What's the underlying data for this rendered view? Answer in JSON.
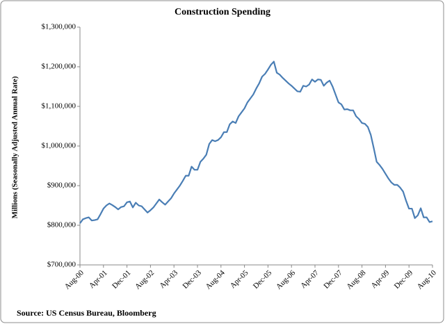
{
  "chart_data": {
    "type": "line",
    "title": "Construction Spending",
    "y_label": "Millions (Seasonally Adjusted Annual Rate)",
    "source": "Source:  US Census Bureau, Bloomberg",
    "categories": [
      "Aug-00",
      null,
      null,
      null,
      null,
      null,
      null,
      null,
      "Apr-01",
      null,
      null,
      null,
      null,
      null,
      null,
      null,
      "Dec-01",
      null,
      null,
      null,
      null,
      null,
      null,
      null,
      "Aug-02",
      null,
      null,
      null,
      null,
      null,
      null,
      null,
      "Apr-03",
      null,
      null,
      null,
      null,
      null,
      null,
      null,
      "Dec-03",
      null,
      null,
      null,
      null,
      null,
      null,
      null,
      "Aug-04",
      null,
      null,
      null,
      null,
      null,
      null,
      null,
      "Apr-05",
      null,
      null,
      null,
      null,
      null,
      null,
      null,
      "Dec-05",
      null,
      null,
      null,
      null,
      null,
      null,
      null,
      "Aug-06",
      null,
      null,
      null,
      null,
      null,
      null,
      null,
      "Apr-07",
      null,
      null,
      null,
      null,
      null,
      null,
      null,
      "Dec-07",
      null,
      null,
      null,
      null,
      null,
      null,
      null,
      "Aug-08",
      null,
      null,
      null,
      null,
      null,
      null,
      null,
      "Apr-09",
      null,
      null,
      null,
      null,
      null,
      null,
      null,
      "Dec-09",
      null,
      null,
      null,
      null,
      null,
      null,
      null,
      "Aug-10"
    ],
    "values": [
      805000,
      815000,
      818000,
      820000,
      812000,
      813000,
      815000,
      828000,
      842000,
      850000,
      855000,
      851000,
      846000,
      840000,
      846000,
      848000,
      858000,
      860000,
      845000,
      857000,
      850000,
      848000,
      840000,
      832000,
      838000,
      845000,
      855000,
      865000,
      858000,
      852000,
      860000,
      868000,
      880000,
      890000,
      900000,
      912000,
      925000,
      925000,
      948000,
      940000,
      940000,
      960000,
      968000,
      978000,
      1005000,
      1015000,
      1012000,
      1015000,
      1022000,
      1035000,
      1035000,
      1055000,
      1062000,
      1058000,
      1075000,
      1085000,
      1095000,
      1110000,
      1120000,
      1130000,
      1145000,
      1158000,
      1175000,
      1182000,
      1193000,
      1205000,
      1213000,
      1185000,
      1180000,
      1172000,
      1165000,
      1158000,
      1152000,
      1145000,
      1138000,
      1137000,
      1152000,
      1150000,
      1155000,
      1168000,
      1162000,
      1168000,
      1167000,
      1152000,
      1160000,
      1165000,
      1150000,
      1130000,
      1110000,
      1105000,
      1092000,
      1093000,
      1090000,
      1090000,
      1075000,
      1068000,
      1058000,
      1056000,
      1048000,
      1028000,
      995000,
      960000,
      952000,
      942000,
      930000,
      918000,
      908000,
      902000,
      902000,
      895000,
      885000,
      862000,
      842000,
      842000,
      818000,
      825000,
      843000,
      820000,
      820000,
      808000,
      810000
    ],
    "color": "#4a7eb5",
    "ylim": [
      700000,
      1300000
    ],
    "yticks": [
      {
        "value": 700000,
        "label": "$700,000"
      },
      {
        "value": 800000,
        "label": "$800,000"
      },
      {
        "value": 900000,
        "label": "$900,000"
      },
      {
        "value": 1000000,
        "label": "$1,000,000"
      },
      {
        "value": 1100000,
        "label": "$1,100,000"
      },
      {
        "value": 1200000,
        "label": "$1,200,000"
      },
      {
        "value": 1300000,
        "label": "$1,300,000"
      }
    ],
    "grid": false
  }
}
